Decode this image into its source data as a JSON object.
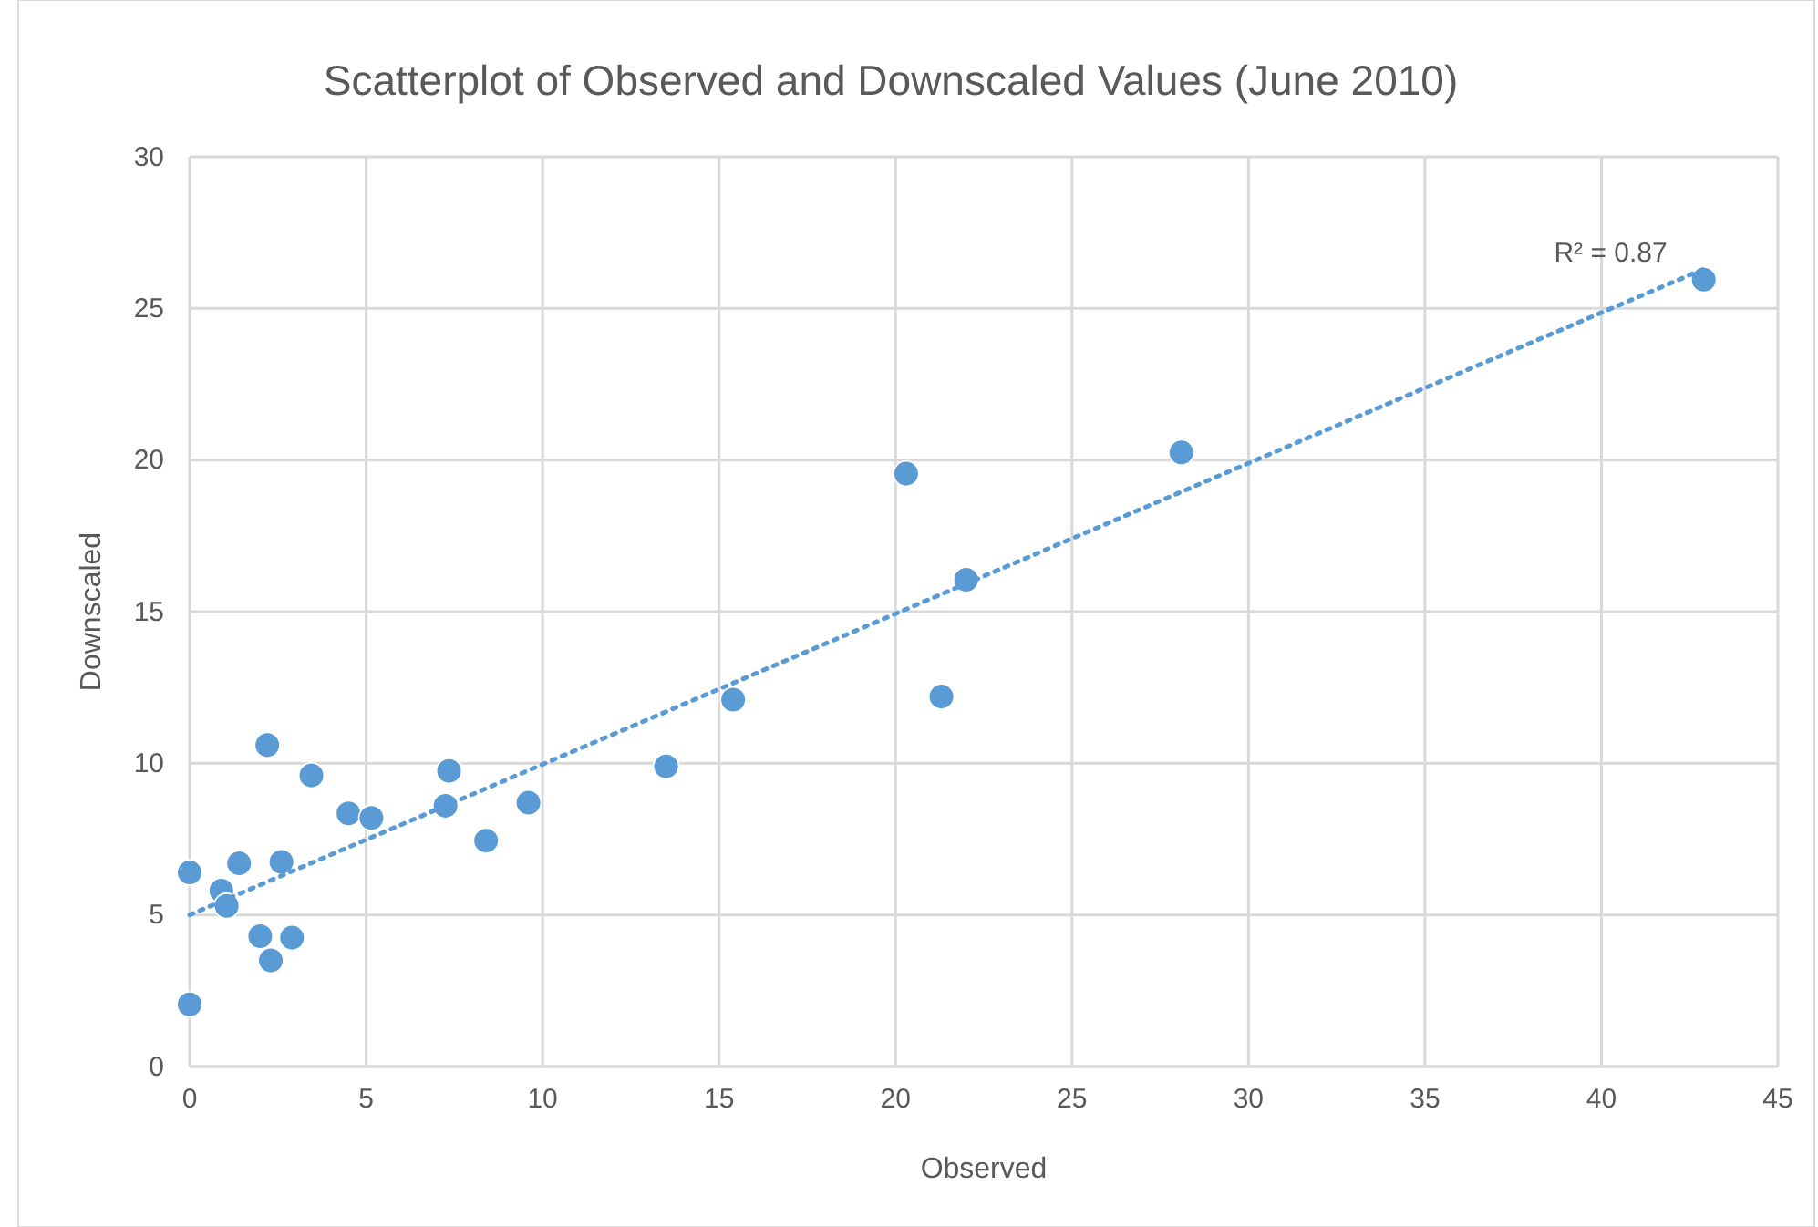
{
  "chart_data": {
    "type": "scatter",
    "title": "Scatterplot of Observed and Downscaled Values (June 2010)",
    "xlabel": "Observed",
    "ylabel": "Downscaled",
    "xlim": [
      0,
      45
    ],
    "xticks": [
      0,
      5,
      10,
      15,
      20,
      25,
      30,
      35,
      40,
      45
    ],
    "ylim": [
      0,
      30
    ],
    "yticks": [
      0,
      5,
      10,
      15,
      20,
      25,
      30
    ],
    "grid": true,
    "series": [
      {
        "color": "#5b9bd5",
        "marker": "circle",
        "x": [
          0,
          0,
          0.9,
          1.05,
          1.4,
          2.6,
          2.2,
          3.45,
          4.5,
          5.15,
          7.35,
          7.25,
          8.4,
          9.6,
          13.5,
          2.0,
          2.9,
          2.3,
          15.4,
          21.3,
          20.3,
          22.0,
          28.1,
          42.9
        ],
        "values": [
          6.4,
          2.05,
          5.8,
          5.3,
          6.7,
          6.75,
          10.6,
          9.6,
          8.35,
          8.2,
          9.75,
          8.6,
          7.45,
          8.7,
          9.9,
          4.3,
          4.25,
          3.5,
          12.1,
          12.2,
          19.55,
          16.05,
          20.25,
          25.95
        ]
      },
      {
        "type": "line",
        "color": "#5b9bd5",
        "line_style": "dotted",
        "marker": "none",
        "x": [
          0,
          42.9
        ],
        "values": [
          5.0,
          26.3
        ]
      }
    ],
    "annotations": [
      {
        "text": "R² = 0.87",
        "x": 42.9,
        "y": 26.3
      }
    ]
  }
}
